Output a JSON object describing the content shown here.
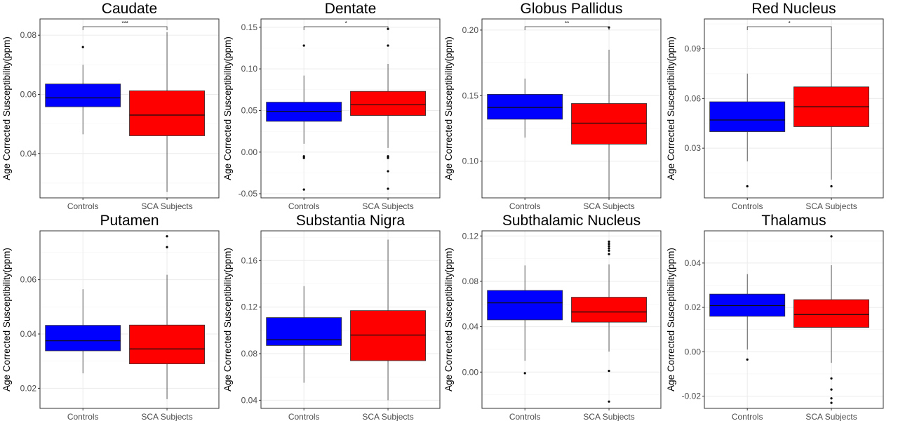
{
  "colors": {
    "controls": "#0000ff",
    "sca": "#ff0000",
    "grid": "#ebebeb",
    "frame": "#333333"
  },
  "chart_data": [
    {
      "type": "boxplot",
      "title": "Caudate",
      "ylabel": "Age Corrected Susceptibility(ppm)",
      "categories": [
        "Controls",
        "SCA Subjects"
      ],
      "ylim": [
        0.025,
        0.0855
      ],
      "yticks": [
        0.04,
        0.06,
        0.08
      ],
      "yticklabels": [
        "0.04",
        "0.06",
        "0.08"
      ],
      "significance": "***",
      "boxes": [
        {
          "whisker_low": 0.0465,
          "q1": 0.0558,
          "median": 0.0588,
          "q3": 0.0635,
          "whisker_high": 0.07,
          "outliers": [
            0.076
          ]
        },
        {
          "whisker_low": 0.027,
          "q1": 0.046,
          "median": 0.053,
          "q3": 0.0612,
          "whisker_high": 0.081,
          "outliers": []
        }
      ]
    },
    {
      "type": "boxplot",
      "title": "Dentate",
      "ylabel": "Age Corrected Susceptibility(ppm)",
      "categories": [
        "Controls",
        "SCA Subjects"
      ],
      "ylim": [
        -0.055,
        0.16
      ],
      "yticks": [
        -0.05,
        0.0,
        0.05,
        0.1,
        0.15
      ],
      "yticklabels": [
        "-0.05",
        "0.00",
        "0.05",
        "0.10",
        "0.15"
      ],
      "significance": "*",
      "boxes": [
        {
          "whisker_low": 0.01,
          "q1": 0.037,
          "median": 0.049,
          "q3": 0.06,
          "whisker_high": 0.092,
          "outliers": [
            0.128,
            -0.005,
            -0.007,
            -0.045
          ]
        },
        {
          "whisker_low": 0.005,
          "q1": 0.044,
          "median": 0.057,
          "q3": 0.073,
          "whisker_high": 0.106,
          "outliers": [
            0.128,
            0.148,
            -0.005,
            -0.007,
            -0.023,
            -0.044
          ]
        }
      ]
    },
    {
      "type": "boxplot",
      "title": "Globus Pallidus",
      "ylabel": "Age Corrected Susceptibility(ppm)",
      "categories": [
        "Controls",
        "SCA Subjects"
      ],
      "ylim": [
        0.072,
        0.2085
      ],
      "yticks": [
        0.1,
        0.15,
        0.2
      ],
      "yticklabels": [
        "0.10",
        "0.15",
        "0.20"
      ],
      "significance": "**",
      "boxes": [
        {
          "whisker_low": 0.118,
          "q1": 0.132,
          "median": 0.141,
          "q3": 0.151,
          "whisker_high": 0.163,
          "outliers": []
        },
        {
          "whisker_low": 0.072,
          "q1": 0.113,
          "median": 0.129,
          "q3": 0.144,
          "whisker_high": 0.185,
          "outliers": [
            0.202
          ]
        }
      ]
    },
    {
      "type": "boxplot",
      "title": "Red Nucleus",
      "ylabel": "Age Corrected Susceptibility(ppm)",
      "categories": [
        "Controls",
        "SCA Subjects"
      ],
      "ylim": [
        0.0,
        0.108
      ],
      "yticks": [
        0.03,
        0.06,
        0.09
      ],
      "yticklabels": [
        "0.03",
        "0.06",
        "0.09"
      ],
      "significance": "*",
      "boxes": [
        {
          "whisker_low": 0.022,
          "q1": 0.04,
          "median": 0.047,
          "q3": 0.058,
          "whisker_high": 0.075,
          "outliers": [
            0.007
          ]
        },
        {
          "whisker_low": 0.011,
          "q1": 0.043,
          "median": 0.055,
          "q3": 0.067,
          "whisker_high": 0.102,
          "outliers": [
            0.007
          ]
        }
      ]
    },
    {
      "type": "boxplot",
      "title": "Putamen",
      "ylabel": "Age Corrected Susceptibility(ppm)",
      "categories": [
        "Controls",
        "SCA Subjects"
      ],
      "ylim": [
        0.0126,
        0.078
      ],
      "yticks": [
        0.02,
        0.04,
        0.06
      ],
      "yticklabels": [
        "0.02",
        "0.04",
        "0.06"
      ],
      "significance": "",
      "boxes": [
        {
          "whisker_low": 0.0255,
          "q1": 0.0338,
          "median": 0.0375,
          "q3": 0.0432,
          "whisker_high": 0.0565,
          "outliers": []
        },
        {
          "whisker_low": 0.016,
          "q1": 0.029,
          "median": 0.0345,
          "q3": 0.0433,
          "whisker_high": 0.0618,
          "outliers": [
            0.076,
            0.072
          ]
        }
      ]
    },
    {
      "type": "boxplot",
      "title": "Substantia Nigra",
      "ylabel": "Age Corrected Susceptibility(ppm)",
      "categories": [
        "Controls",
        "SCA Subjects"
      ],
      "ylim": [
        0.033,
        0.1855
      ],
      "yticks": [
        0.04,
        0.08,
        0.12,
        0.16
      ],
      "yticklabels": [
        "0.04",
        "0.08",
        "0.12",
        "0.16"
      ],
      "significance": "",
      "boxes": [
        {
          "whisker_low": 0.055,
          "q1": 0.087,
          "median": 0.092,
          "q3": 0.111,
          "whisker_high": 0.138,
          "outliers": []
        },
        {
          "whisker_low": 0.04,
          "q1": 0.074,
          "median": 0.096,
          "q3": 0.117,
          "whisker_high": 0.178,
          "outliers": []
        }
      ]
    },
    {
      "type": "boxplot",
      "title": "Subthalamic Nucleus",
      "ylabel": "Age Corrected Susceptibility(ppm)",
      "categories": [
        "Controls",
        "SCA Subjects"
      ],
      "ylim": [
        -0.032,
        0.1245
      ],
      "yticks": [
        0.0,
        0.04,
        0.08,
        0.12
      ],
      "yticklabels": [
        "0.00",
        "0.04",
        "0.08",
        "0.12"
      ],
      "significance": "",
      "boxes": [
        {
          "whisker_low": 0.01,
          "q1": 0.046,
          "median": 0.061,
          "q3": 0.072,
          "whisker_high": 0.094,
          "outliers": [
            -0.001
          ]
        },
        {
          "whisker_low": 0.018,
          "q1": 0.044,
          "median": 0.053,
          "q3": 0.066,
          "whisker_high": 0.095,
          "outliers": [
            0.115,
            0.113,
            0.111,
            0.109,
            0.107,
            0.104,
            0.001,
            -0.026
          ]
        }
      ]
    },
    {
      "type": "boxplot",
      "title": "Thalamus",
      "ylabel": "Age Corrected Susceptibility(ppm)",
      "categories": [
        "Controls",
        "SCA Subjects"
      ],
      "ylim": [
        -0.0255,
        0.0545
      ],
      "yticks": [
        -0.02,
        0.0,
        0.02,
        0.04
      ],
      "yticklabels": [
        "-0.02",
        "0.00",
        "0.02",
        "0.04"
      ],
      "significance": "",
      "boxes": [
        {
          "whisker_low": 0.001,
          "q1": 0.016,
          "median": 0.0208,
          "q3": 0.026,
          "whisker_high": 0.035,
          "outliers": [
            -0.0035
          ]
        },
        {
          "whisker_low": -0.005,
          "q1": 0.011,
          "median": 0.0168,
          "q3": 0.0235,
          "whisker_high": 0.039,
          "outliers": [
            0.052,
            -0.012,
            -0.017,
            -0.021,
            -0.023
          ]
        }
      ]
    }
  ]
}
